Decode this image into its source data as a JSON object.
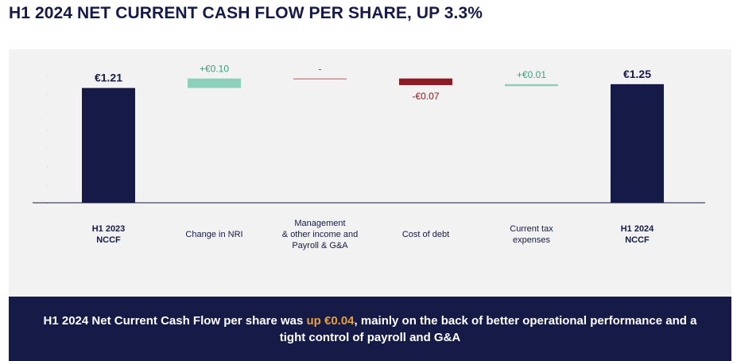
{
  "title": "H1 2024 NET CURRENT CASH FLOW PER SHARE, UP 3.3%",
  "colors": {
    "navy": "#151a47",
    "increase": "#8ecfbb",
    "decrease": "#8c1c24",
    "highlight": "#e7a03a",
    "panel": "#f2f2f2"
  },
  "chart_data": {
    "type": "bar",
    "subtype": "waterfall",
    "categories": [
      [
        "H1 2023",
        "NCCF"
      ],
      [
        "Change in NRI"
      ],
      [
        "Management",
        "& other income and",
        "Payroll & G&A"
      ],
      [
        "Cost of debt"
      ],
      [
        "Current tax",
        "expenses"
      ],
      [
        "H1 2024",
        "NCCF"
      ]
    ],
    "bars": [
      {
        "kind": "total",
        "value": 1.21,
        "label": "€1.21"
      },
      {
        "kind": "increase",
        "value": 0.1,
        "label": "+€0.10"
      },
      {
        "kind": "neutral",
        "value": 0.0,
        "label": "-"
      },
      {
        "kind": "decrease",
        "value": -0.07,
        "label": "-€0.07"
      },
      {
        "kind": "increase",
        "value": 0.01,
        "label": "+€0.01"
      },
      {
        "kind": "total",
        "value": 1.25,
        "label": "€1.25"
      }
    ],
    "ylim": [
      0,
      1.45
    ],
    "grid": false,
    "legend": "none"
  },
  "footer": {
    "text_before": "H1 2024 Net Current Cash Flow per share was ",
    "highlight": "up €0.04",
    "text_after": ", mainly on the back of better operational performance and a tight control of payroll and G&A"
  }
}
